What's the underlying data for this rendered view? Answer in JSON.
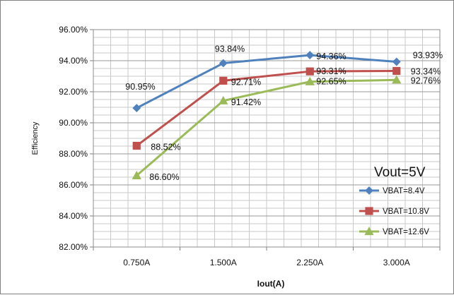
{
  "chart_data": {
    "type": "line",
    "title": "",
    "xlabel": "Iout(A)",
    "ylabel": "Efficiency",
    "categories": [
      "0.750A",
      "1.500A",
      "2.250A",
      "3.000A"
    ],
    "y_ticks": [
      "82.00%",
      "84.00%",
      "86.00%",
      "88.00%",
      "90.00%",
      "92.00%",
      "94.00%",
      "96.00%"
    ],
    "ylim": [
      82,
      96
    ],
    "grid": true,
    "legend_position": "right",
    "annotation": "Vout=5V",
    "series": [
      {
        "name": "VBAT=8.4V",
        "color": "#4f81bd",
        "marker": "diamond",
        "values": [
          90.95,
          93.84,
          94.36,
          93.93
        ],
        "labels": [
          "90.95%",
          "93.84%",
          "94.36%",
          "93.93%"
        ]
      },
      {
        "name": "VBAT=10.8V",
        "color": "#c0504d",
        "marker": "square",
        "values": [
          88.52,
          92.71,
          93.31,
          93.34
        ],
        "labels": [
          "88.52%",
          "92.71%",
          "93.31%",
          "93.34%"
        ]
      },
      {
        "name": "VBAT=12.6V",
        "color": "#9bbb59",
        "marker": "triangle",
        "values": [
          86.6,
          91.42,
          92.65,
          92.76
        ],
        "labels": [
          "86.60%",
          "91.42%",
          "92.65%",
          "92.76%"
        ]
      }
    ]
  }
}
